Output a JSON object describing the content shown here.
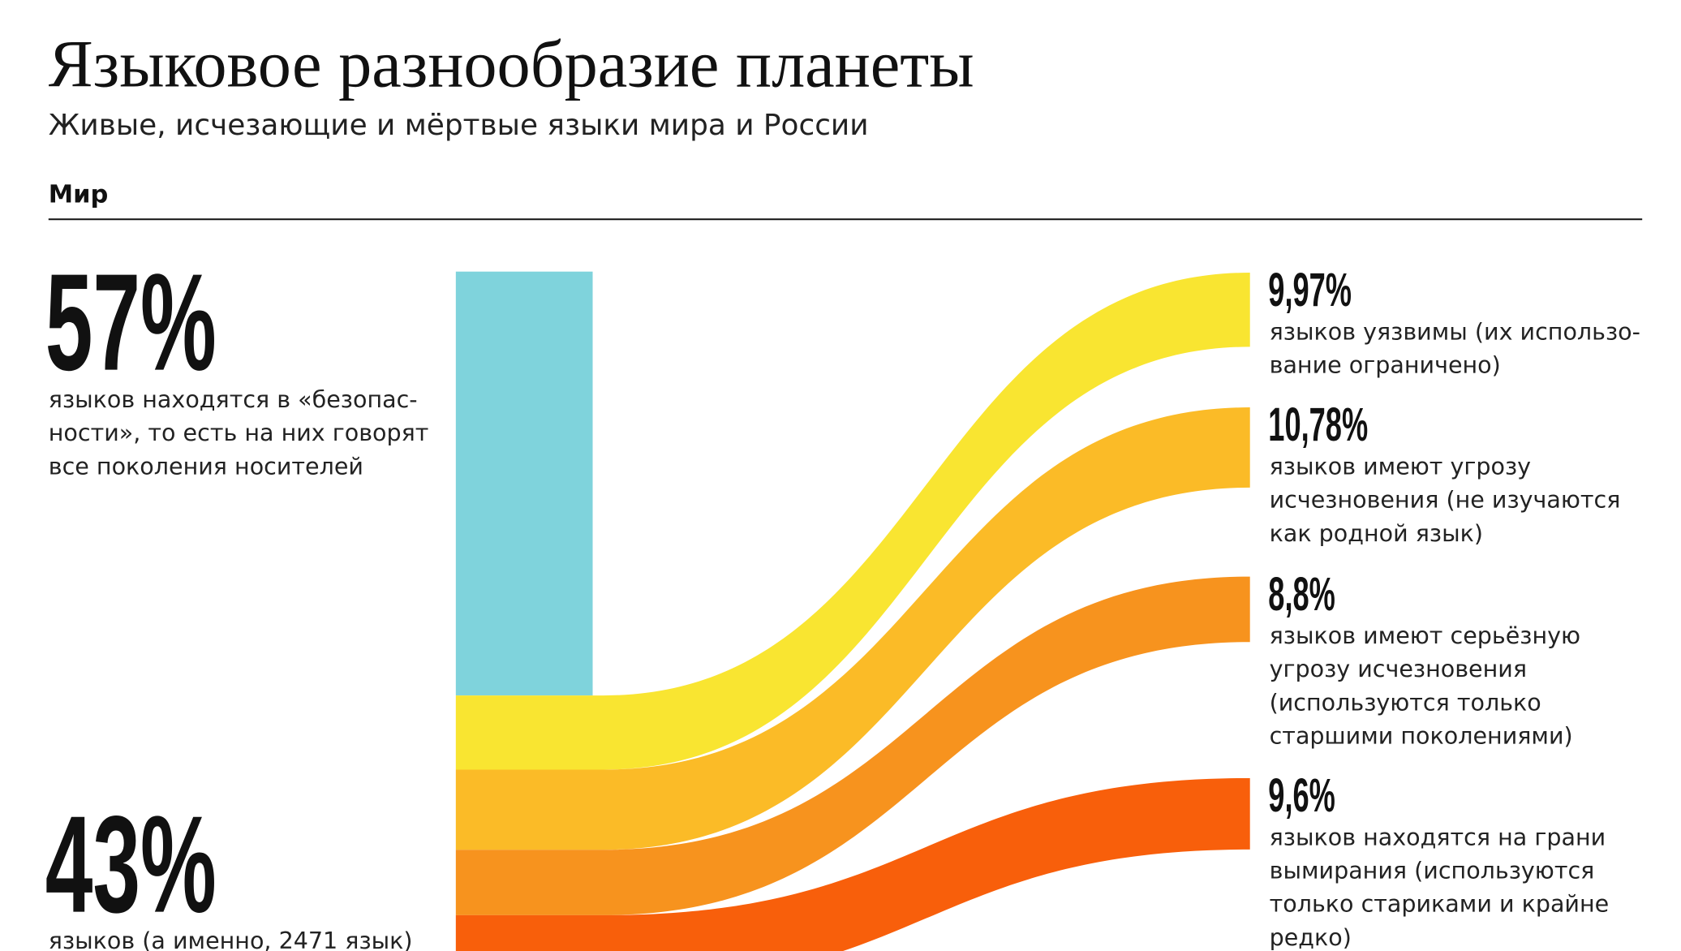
{
  "header": {
    "title": "Языковое разнообразие планеты",
    "subtitle": "Живые, исчезающие и мёртвые языки мира и России",
    "section": "Мир"
  },
  "chart_data": {
    "type": "flow",
    "safe": {
      "value": 57,
      "value_label": "57%",
      "color": "#7fd3dc",
      "desc": [
        "языков находятся в «безопас-",
        "ности», то есть на них говорят",
        "все поколения носителей"
      ]
    },
    "endangered": {
      "value": 43,
      "value_label": "43%",
      "desc": [
        "языков (а именно, 2471 язык)"
      ]
    },
    "flows": [
      {
        "value": 9.97,
        "value_label": "9,97%",
        "color": "#f9e531",
        "desc": [
          "языков уязвимы (их использо-",
          "вание ограничено)"
        ]
      },
      {
        "value": 10.78,
        "value_label": "10,78%",
        "color": "#fbbb27",
        "desc": [
          "языков имеют угрозу",
          "исчезновения (не изучаются",
          "как родной язык)"
        ]
      },
      {
        "value": 8.8,
        "value_label": "8,8%",
        "color": "#f7931e",
        "desc": [
          "языков имеют серьёзную",
          "угрозу исчезновения",
          "(используются только",
          "старшими поколениями)"
        ]
      },
      {
        "value": 9.6,
        "value_label": "9,6%",
        "color": "#f85f0b",
        "desc": [
          "языков находятся на грани",
          "вымирания (используются",
          "только стариками и крайне",
          "редко)"
        ]
      }
    ]
  }
}
